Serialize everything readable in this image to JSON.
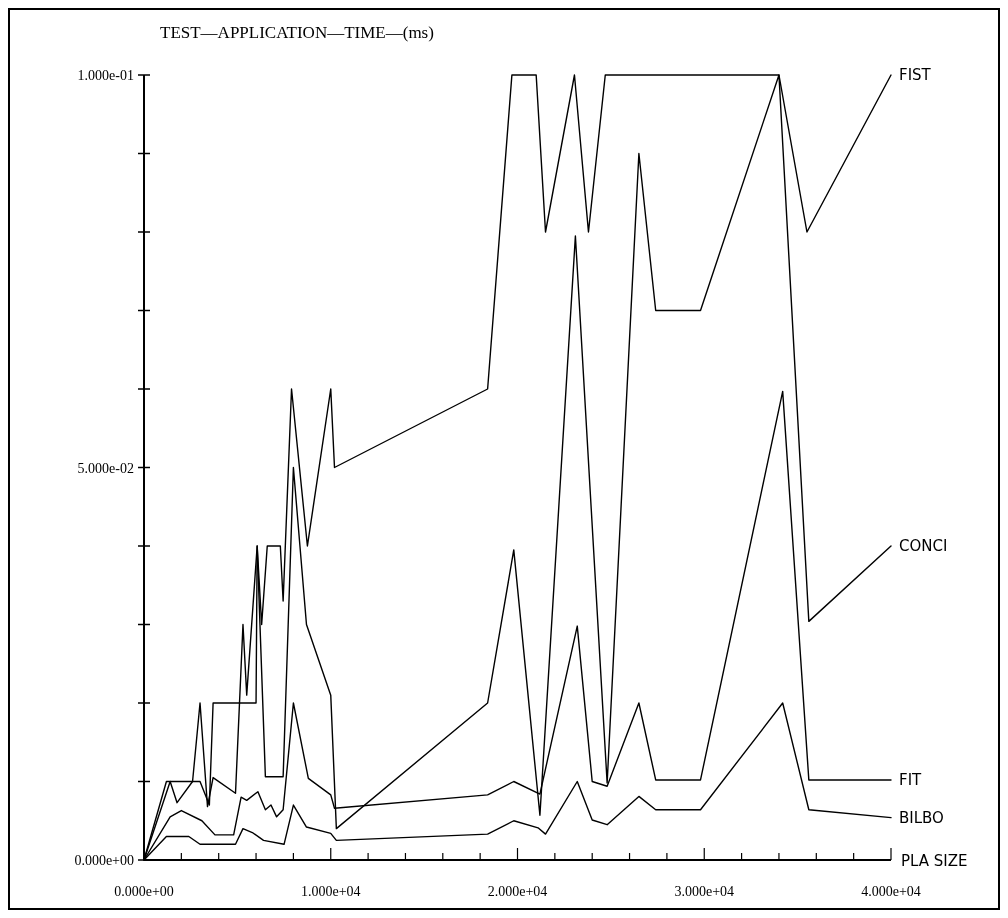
{
  "chart_data": {
    "type": "line",
    "title": "TEST—APPLICATION—TIME—(ms)",
    "xlabel": "PLA SIZE",
    "xlim": [
      0,
      40000
    ],
    "ylim": [
      0,
      0.1
    ],
    "xticks": [
      {
        "value": 0,
        "label": "0.000e+00"
      },
      {
        "value": 2000,
        "label": null
      },
      {
        "value": 4000,
        "label": null
      },
      {
        "value": 6000,
        "label": null
      },
      {
        "value": 8000,
        "label": null
      },
      {
        "value": 10000,
        "label": "1.000e+04"
      },
      {
        "value": 12000,
        "label": null
      },
      {
        "value": 14000,
        "label": null
      },
      {
        "value": 16000,
        "label": null
      },
      {
        "value": 18000,
        "label": null
      },
      {
        "value": 20000,
        "label": "2.000e+04"
      },
      {
        "value": 22000,
        "label": null
      },
      {
        "value": 24000,
        "label": null
      },
      {
        "value": 26000,
        "label": null
      },
      {
        "value": 28000,
        "label": null
      },
      {
        "value": 30000,
        "label": "3.000e+04"
      },
      {
        "value": 32000,
        "label": null
      },
      {
        "value": 34000,
        "label": null
      },
      {
        "value": 36000,
        "label": null
      },
      {
        "value": 38000,
        "label": null
      },
      {
        "value": 40000,
        "label": "4.000e+04"
      }
    ],
    "yticks": [
      {
        "value": 0,
        "label": "0.000e+00"
      },
      {
        "value": 0.01,
        "label": null
      },
      {
        "value": 0.02,
        "label": null
      },
      {
        "value": 0.03,
        "label": null
      },
      {
        "value": 0.04,
        "label": null
      },
      {
        "value": 0.05,
        "label": "5.000e-02"
      },
      {
        "value": 0.06,
        "label": null
      },
      {
        "value": 0.07,
        "label": null
      },
      {
        "value": 0.08,
        "label": null
      },
      {
        "value": 0.09,
        "label": null
      },
      {
        "value": 0.1,
        "label": "1.000e-01"
      }
    ],
    "grid": false,
    "marker": "none",
    "line_style": "solid",
    "series": [
      {
        "name": "FIST",
        "color": "#000000",
        "x": [
          0,
          1200,
          3000,
          3500,
          3700,
          6000,
          6060,
          6300,
          6600,
          7300,
          7450,
          7900,
          8750,
          10000,
          10200,
          18400,
          19700,
          21000,
          21500,
          23050,
          23800,
          24700,
          34000,
          35500,
          40000
        ],
        "values": [
          0,
          0.01,
          0.01,
          0.007,
          0.02,
          0.02,
          0.04,
          0.03,
          0.04,
          0.04,
          0.033,
          0.06,
          0.04,
          0.06,
          0.05,
          0.06,
          0.1,
          0.1,
          0.08,
          0.1,
          0.08,
          0.1,
          0.1,
          0.08,
          0.1
        ]
      },
      {
        "name": "CONCI",
        "color": "#000000",
        "x": [
          0,
          1400,
          1770,
          2600,
          3000,
          3400,
          3700,
          4900,
          5300,
          5500,
          6060,
          6500,
          7450,
          8000,
          8700,
          10000,
          10300,
          18400,
          19800,
          21200,
          23100,
          24800,
          26500,
          27400,
          29800,
          34000,
          35600,
          40000
        ],
        "values": [
          0,
          0.01,
          0.0073,
          0.01,
          0.02,
          0.0068,
          0.0105,
          0.0085,
          0.03,
          0.021,
          0.04,
          0.0106,
          0.0106,
          0.05,
          0.03,
          0.021,
          0.004,
          0.02,
          0.0395,
          0.0057,
          0.0795,
          0.0098,
          0.09,
          0.07,
          0.07,
          0.1,
          0.0304,
          0.04
        ]
      },
      {
        "name": "FIT",
        "color": "#000000",
        "x": [
          0,
          1400,
          2000,
          3100,
          3800,
          4800,
          5200,
          5500,
          6100,
          6500,
          6800,
          7100,
          7450,
          8000,
          8800,
          10000,
          10200,
          18400,
          19800,
          21200,
          23200,
          24000,
          24800,
          26500,
          27400,
          29800,
          34200,
          35600,
          40000
        ],
        "values": [
          0,
          0.0055,
          0.0063,
          0.005,
          0.0032,
          0.0032,
          0.008,
          0.0076,
          0.0087,
          0.0064,
          0.007,
          0.0055,
          0.0064,
          0.02,
          0.0104,
          0.0083,
          0.0066,
          0.0083,
          0.01,
          0.0084,
          0.0298,
          0.01,
          0.0094,
          0.02,
          0.0102,
          0.0102,
          0.0597,
          0.0102,
          0.0102
        ]
      },
      {
        "name": "BILBO",
        "color": "#000000",
        "x": [
          0,
          1200,
          2400,
          3000,
          4900,
          5300,
          5800,
          6400,
          7500,
          8000,
          8700,
          10000,
          10300,
          18400,
          19800,
          21100,
          21500,
          23200,
          24000,
          24800,
          26500,
          27400,
          29800,
          34200,
          35600,
          40000
        ],
        "values": [
          0,
          0.003,
          0.003,
          0.002,
          0.002,
          0.004,
          0.0035,
          0.0025,
          0.002,
          0.007,
          0.0042,
          0.0034,
          0.0025,
          0.0033,
          0.005,
          0.0041,
          0.0033,
          0.01,
          0.0051,
          0.0045,
          0.0081,
          0.0064,
          0.0064,
          0.02,
          0.0064,
          0.0054
        ]
      }
    ]
  }
}
